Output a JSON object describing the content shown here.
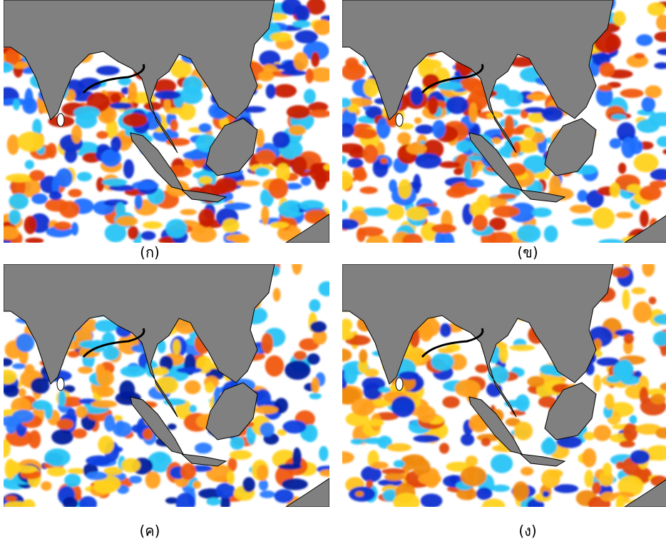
{
  "panels": [
    {
      "caption": "(ก)"
    },
    {
      "caption": "(ข)"
    },
    {
      "caption": "(ค)"
    },
    {
      "caption": "(ง)"
    }
  ]
}
